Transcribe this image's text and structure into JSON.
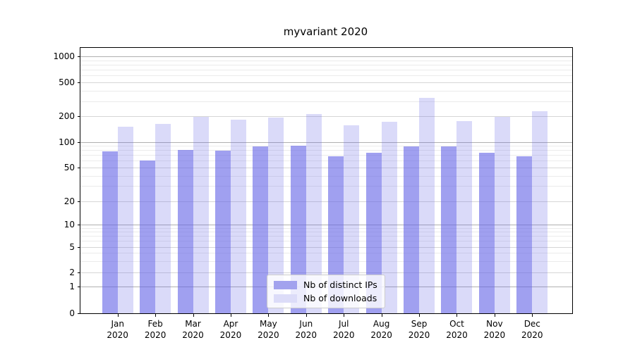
{
  "figure": {
    "title": "myvariant 2020"
  },
  "legend": {
    "items": [
      {
        "label": "Nb of distinct IPs",
        "color": "#a2a2ee"
      },
      {
        "label": "Nb of downloads",
        "color": "#dcdcf8"
      }
    ]
  },
  "colors": {
    "bar_dark": "rgba(100,100,230,0.61)",
    "bar_light": "rgba(100,100,230,0.24)",
    "grid_major": "#b0b0b0",
    "grid_semi": "#d6d6d6",
    "grid_minor": "#ebebeb",
    "axis": "#000000",
    "legend_border": "#cccccc"
  },
  "chart_data": {
    "type": "bar",
    "title": "myvariant 2020",
    "categories": [
      "Jan 2020",
      "Feb 2020",
      "Mar 2020",
      "Apr 2020",
      "May 2020",
      "Jun 2020",
      "Jul 2020",
      "Aug 2020",
      "Sep 2020",
      "Oct 2020",
      "Nov 2020",
      "Dec 2020"
    ],
    "series": [
      {
        "name": "Nb of distinct IPs",
        "values": [
          77,
          61,
          80,
          79,
          88,
          90,
          68,
          75,
          88,
          89,
          74,
          68
        ]
      },
      {
        "name": "Nb of downloads",
        "values": [
          150,
          163,
          196,
          184,
          195,
          215,
          158,
          174,
          330,
          177,
          199,
          230
        ]
      }
    ],
    "xlabel": "",
    "ylabel": "",
    "yscale": "symlog",
    "yticks": [
      0,
      1,
      2,
      5,
      10,
      20,
      50,
      100,
      200,
      500,
      1000
    ],
    "minor_yticks": [
      3,
      4,
      6,
      7,
      8,
      9,
      30,
      40,
      60,
      70,
      80,
      90,
      300,
      400,
      600,
      700,
      800,
      900
    ],
    "ylim": [
      0,
      1300
    ],
    "grid": true,
    "legend_position": "lower center"
  }
}
